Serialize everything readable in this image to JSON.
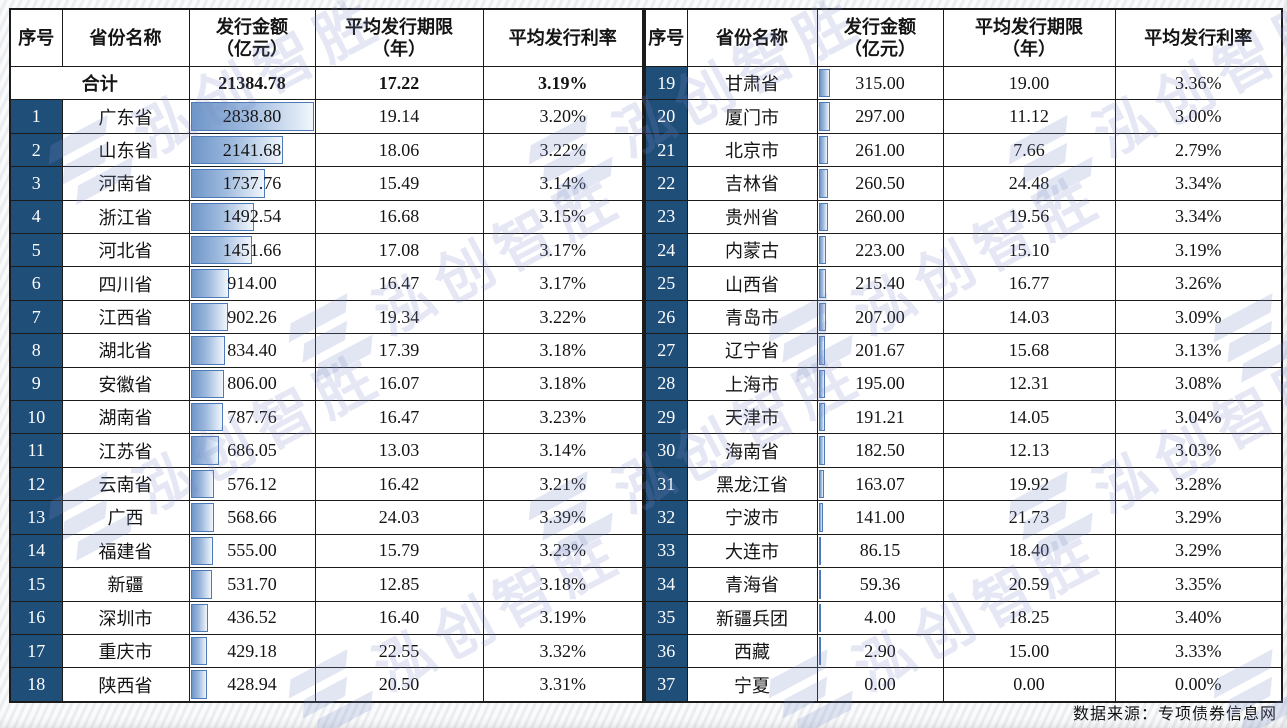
{
  "columns": {
    "index": "序号",
    "province": "省份名称",
    "amount_line1": "发行金额",
    "amount_line2": "（亿元）",
    "term_line1": "平均发行期限",
    "term_line2": "（年）",
    "rate": "平均发行利率"
  },
  "footer_source": "数据来源：专项债券信息网",
  "watermark_text": "泓创智胜",
  "colors": {
    "index_cell_bg": "#1f4e79",
    "index_cell_text": "#ffffff",
    "bar_border": "#4e7ab8",
    "bar_fill_start": "#6f96c8",
    "bar_fill_end": "#f1f6fc",
    "table_border": "#1b1b1b",
    "watermark": "#7c8bc8",
    "page_bg": "#f4f5f7"
  },
  "chart_data": {
    "type": "table",
    "title": "",
    "columns": [
      "序号",
      "省份名称",
      "发行金额（亿元）",
      "平均发行期限（年）",
      "平均发行利率"
    ],
    "total": {
      "label": "合计",
      "amount": 21384.78,
      "term": 17.22,
      "rate": "3.19%"
    },
    "bar_column": "发行金额（亿元）",
    "bar_max": 2838.8,
    "rows": [
      [
        1,
        "广东省",
        2838.8,
        19.14,
        "3.20%"
      ],
      [
        2,
        "山东省",
        2141.68,
        18.06,
        "3.22%"
      ],
      [
        3,
        "河南省",
        1737.76,
        15.49,
        "3.14%"
      ],
      [
        4,
        "浙江省",
        1492.54,
        16.68,
        "3.15%"
      ],
      [
        5,
        "河北省",
        1451.66,
        17.08,
        "3.17%"
      ],
      [
        6,
        "四川省",
        914.0,
        16.47,
        "3.17%"
      ],
      [
        7,
        "江西省",
        902.26,
        19.34,
        "3.22%"
      ],
      [
        8,
        "湖北省",
        834.4,
        17.39,
        "3.18%"
      ],
      [
        9,
        "安徽省",
        806.0,
        16.07,
        "3.18%"
      ],
      [
        10,
        "湖南省",
        787.76,
        16.47,
        "3.23%"
      ],
      [
        11,
        "江苏省",
        686.05,
        13.03,
        "3.14%"
      ],
      [
        12,
        "云南省",
        576.12,
        16.42,
        "3.21%"
      ],
      [
        13,
        "广西",
        568.66,
        24.03,
        "3.39%"
      ],
      [
        14,
        "福建省",
        555.0,
        15.79,
        "3.23%"
      ],
      [
        15,
        "新疆",
        531.7,
        12.85,
        "3.18%"
      ],
      [
        16,
        "深圳市",
        436.52,
        16.4,
        "3.19%"
      ],
      [
        17,
        "重庆市",
        429.18,
        22.55,
        "3.32%"
      ],
      [
        18,
        "陕西省",
        428.94,
        20.5,
        "3.31%"
      ],
      [
        19,
        "甘肃省",
        315.0,
        19.0,
        "3.36%"
      ],
      [
        20,
        "厦门市",
        297.0,
        11.12,
        "3.00%"
      ],
      [
        21,
        "北京市",
        261.0,
        7.66,
        "2.79%"
      ],
      [
        22,
        "吉林省",
        260.5,
        24.48,
        "3.34%"
      ],
      [
        23,
        "贵州省",
        260.0,
        19.56,
        "3.34%"
      ],
      [
        24,
        "内蒙古",
        223.0,
        15.1,
        "3.19%"
      ],
      [
        25,
        "山西省",
        215.4,
        16.77,
        "3.26%"
      ],
      [
        26,
        "青岛市",
        207.0,
        14.03,
        "3.09%"
      ],
      [
        27,
        "辽宁省",
        201.67,
        15.68,
        "3.13%"
      ],
      [
        28,
        "上海市",
        195.0,
        12.31,
        "3.08%"
      ],
      [
        29,
        "天津市",
        191.21,
        14.05,
        "3.04%"
      ],
      [
        30,
        "海南省",
        182.5,
        12.13,
        "3.03%"
      ],
      [
        31,
        "黑龙江省",
        163.07,
        19.92,
        "3.28%"
      ],
      [
        32,
        "宁波市",
        141.0,
        21.73,
        "3.29%"
      ],
      [
        33,
        "大连市",
        86.15,
        18.4,
        "3.29%"
      ],
      [
        34,
        "青海省",
        59.36,
        20.59,
        "3.35%"
      ],
      [
        35,
        "新疆兵团",
        4.0,
        18.25,
        "3.40%"
      ],
      [
        36,
        "西藏",
        2.9,
        15.0,
        "3.33%"
      ],
      [
        37,
        "宁夏",
        0.0,
        0.0,
        "0.00%"
      ]
    ]
  }
}
